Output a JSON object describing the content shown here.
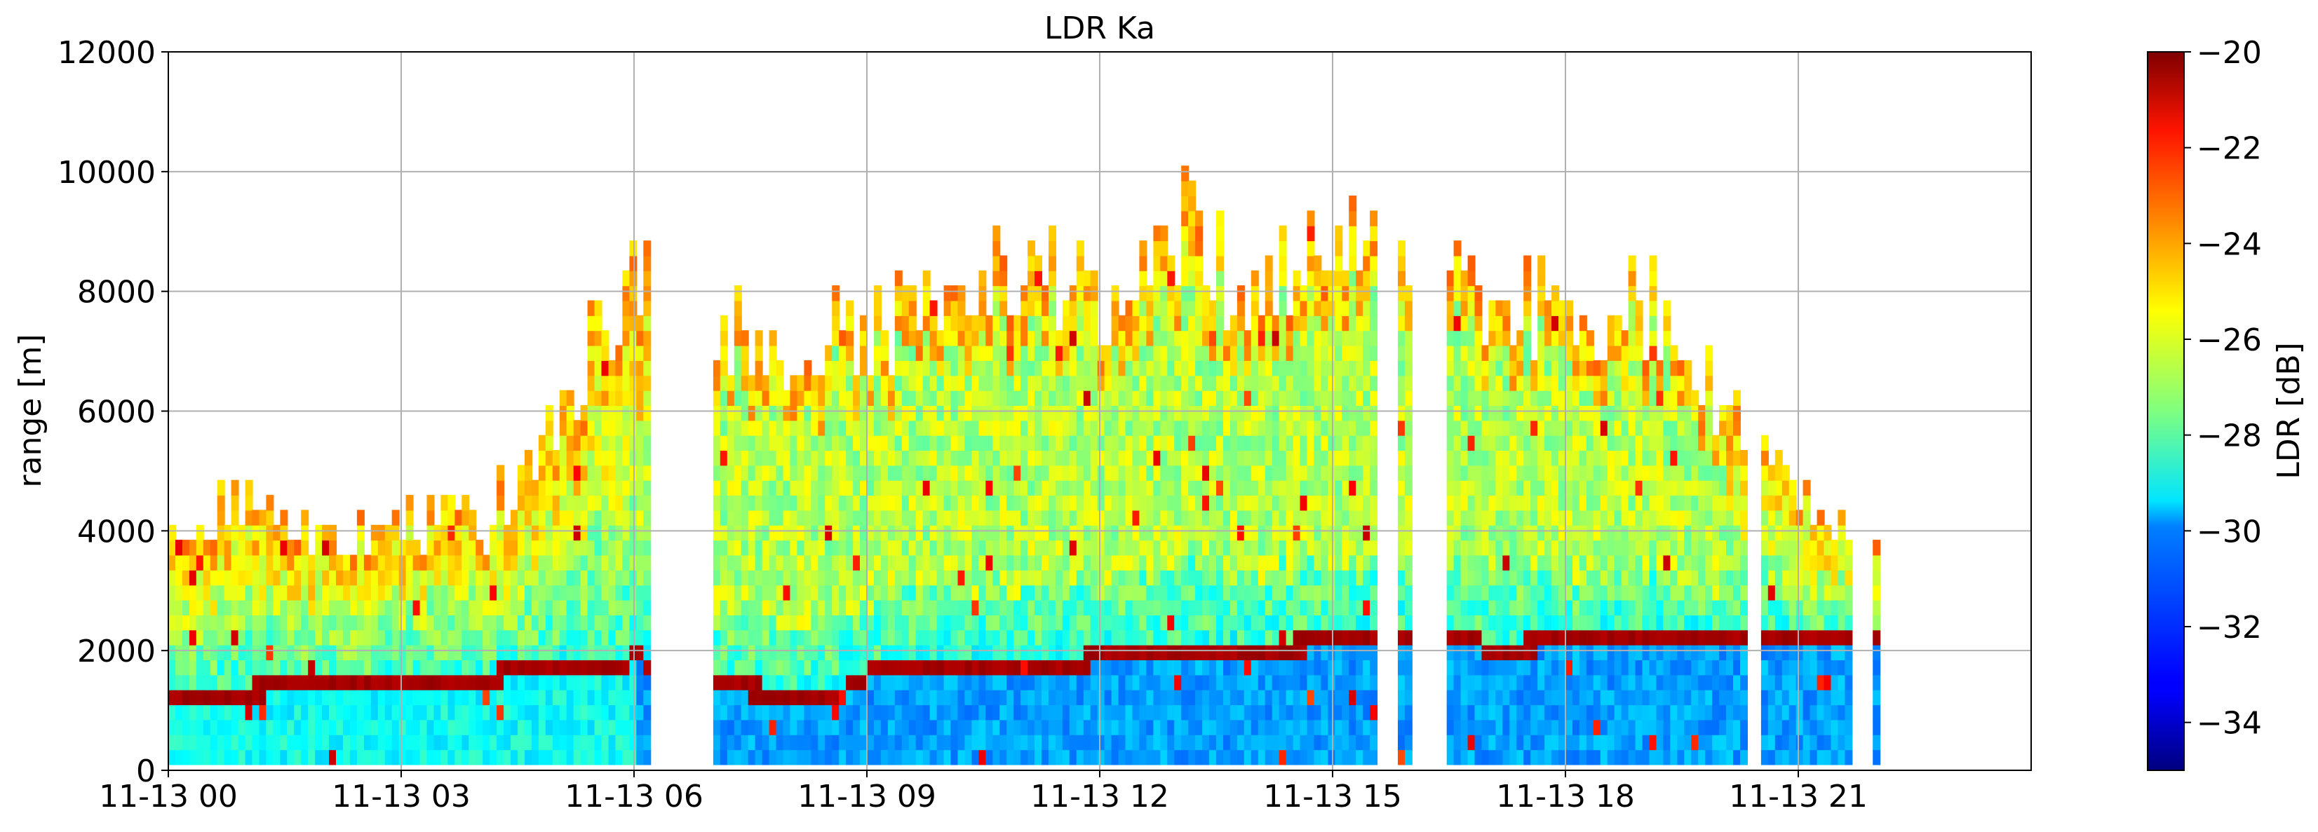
{
  "chart_data": {
    "type": "heatmap",
    "title": "LDR Ka",
    "xlabel": "",
    "ylabel": "range [m]",
    "ylim": [
      0,
      12000
    ],
    "xlim": [
      "11-13 00:00",
      "11-14 00:00"
    ],
    "x_ticks": [
      "11-13 00",
      "11-13 03",
      "11-13 06",
      "11-13 09",
      "11-13 12",
      "11-13 15",
      "11-13 18",
      "11-13 21"
    ],
    "y_ticks": [
      0,
      2000,
      4000,
      6000,
      8000,
      10000,
      12000
    ],
    "grid": true,
    "colorbar": {
      "label": "LDR [dB]",
      "range": [
        -35,
        -20
      ],
      "ticks": [
        "−34",
        "−32",
        "−30",
        "−28",
        "−26",
        "−24",
        "−22",
        "−20"
      ],
      "colormap": "jet"
    },
    "features": {
      "bright_band_height_m": [
        {
          "hour": 0.0,
          "range": 1150
        },
        {
          "hour": 1.5,
          "range": 1250
        },
        {
          "hour": 3.0,
          "range": 1350
        },
        {
          "hour": 4.5,
          "range": 1500
        },
        {
          "hour": 5.5,
          "range": 1650
        },
        {
          "hour": 6.0,
          "range": 1750
        },
        {
          "hour": 7.0,
          "range": 1250
        },
        {
          "hour": 8.0,
          "range": 1200
        },
        {
          "hour": 8.5,
          "range": 1100
        },
        {
          "hour": 9.0,
          "range": 1500
        },
        {
          "hour": 10.0,
          "range": 1700
        },
        {
          "hour": 11.0,
          "range": 1650
        },
        {
          "hour": 12.0,
          "range": 1750
        },
        {
          "hour": 13.0,
          "range": 1900
        },
        {
          "hour": 14.0,
          "range": 1950
        },
        {
          "hour": 15.0,
          "range": 2000
        },
        {
          "hour": 16.0,
          "range": 2150
        },
        {
          "hour": 17.0,
          "range": 1950
        },
        {
          "hour": 18.0,
          "range": 2000
        },
        {
          "hour": 19.0,
          "range": 2100
        },
        {
          "hour": 20.0,
          "range": 2150
        },
        {
          "hour": 21.0,
          "range": 2100
        }
      ],
      "echo_top_height_m": [
        {
          "hour": 0.0,
          "range": 4000
        },
        {
          "hour": 1.0,
          "range": 4500
        },
        {
          "hour": 2.0,
          "range": 3800
        },
        {
          "hour": 3.0,
          "range": 4200
        },
        {
          "hour": 4.0,
          "range": 4000
        },
        {
          "hour": 5.0,
          "range": 6000
        },
        {
          "hour": 6.0,
          "range": 8500
        },
        {
          "hour": 7.0,
          "range": 7500
        },
        {
          "hour": 8.0,
          "range": 7000
        },
        {
          "hour": 9.0,
          "range": 7500
        },
        {
          "hour": 10.0,
          "range": 8000
        },
        {
          "hour": 11.0,
          "range": 8500
        },
        {
          "hour": 12.0,
          "range": 8000
        },
        {
          "hour": 13.0,
          "range": 9000
        },
        {
          "hour": 14.0,
          "range": 8200
        },
        {
          "hour": 15.0,
          "range": 9300
        },
        {
          "hour": 16.0,
          "range": 8500
        },
        {
          "hour": 17.0,
          "range": 7800
        },
        {
          "hour": 18.0,
          "range": 8000
        },
        {
          "hour": 19.0,
          "range": 7800
        },
        {
          "hour": 20.0,
          "range": 6200
        },
        {
          "hour": 21.0,
          "range": 4500
        },
        {
          "hour": 22.0,
          "range": 4000
        }
      ]
    }
  }
}
